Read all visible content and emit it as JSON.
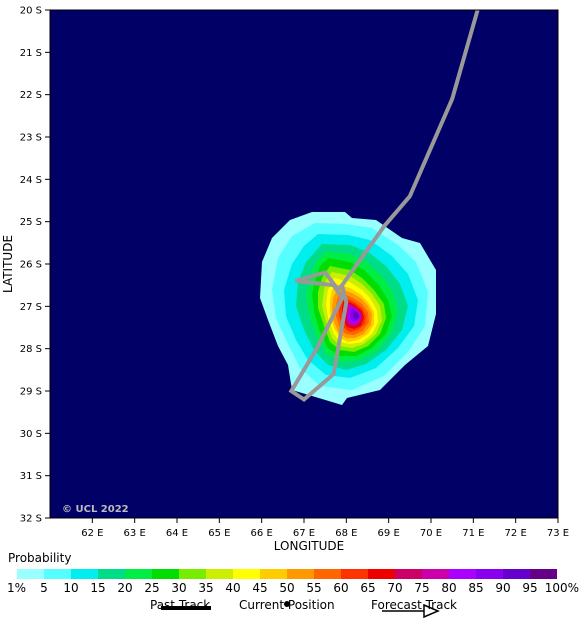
{
  "map": {
    "y_axis_title": "LATITUDE",
    "x_axis_title": "LONGITUDE",
    "lat_ticks": [
      "20 S",
      "21 S",
      "22 S",
      "23 S",
      "24 S",
      "25 S",
      "26 S",
      "27 S",
      "28 S",
      "29 S",
      "30 S",
      "31 S",
      "32 S"
    ],
    "lon_ticks": [
      "62 E",
      "63 E",
      "64 E",
      "65 E",
      "66 E",
      "67 E",
      "68 E",
      "69 E",
      "70 E",
      "71 E",
      "72 E",
      "73 E"
    ],
    "copyright": "© UCL 2022",
    "background_color": "#000066",
    "track_color": "#999999"
  },
  "chart_data": {
    "type": "heatmap",
    "title": "",
    "xlabel": "LONGITUDE",
    "ylabel": "LATITUDE",
    "xlim": [
      61,
      73
    ],
    "ylim": [
      -32,
      -20
    ],
    "probability_peak": {
      "lon": 68.3,
      "lat": -27.2
    },
    "probability_extent": {
      "lon": [
        66.0,
        70.2
      ],
      "lat": [
        -29.3,
        -24.7
      ]
    },
    "forecast_track": [
      {
        "lon": 71.1,
        "lat": -20.0
      },
      {
        "lon": 70.5,
        "lat": -22.1
      },
      {
        "lon": 69.5,
        "lat": -24.4
      },
      {
        "lon": 68.9,
        "lat": -25.1
      },
      {
        "lon": 67.9,
        "lat": -26.5
      },
      {
        "lon": 67.8,
        "lat": -26.6
      },
      {
        "lon": 67.5,
        "lat": -26.2
      },
      {
        "lon": 66.8,
        "lat": -26.4
      },
      {
        "lon": 67.7,
        "lat": -26.5
      },
      {
        "lon": 67.9,
        "lat": -26.8
      },
      {
        "lon": 67.3,
        "lat": -28.0
      },
      {
        "lon": 66.7,
        "lat": -29.0
      },
      {
        "lon": 67.0,
        "lat": -29.2
      },
      {
        "lon": 67.7,
        "lat": -28.6
      },
      {
        "lon": 68.0,
        "lat": -26.9
      },
      {
        "lon": 67.9,
        "lat": -26.5
      }
    ]
  },
  "legend": {
    "title": "Probability",
    "labels": [
      "1%",
      "5",
      "10",
      "15",
      "20",
      "25",
      "30",
      "35",
      "40",
      "45",
      "50",
      "55",
      "60",
      "65",
      "70",
      "75",
      "80",
      "85",
      "90",
      "95",
      "100%"
    ],
    "colors": [
      "#99ffff",
      "#55ffff",
      "#00eeee",
      "#00dd88",
      "#00ee44",
      "#00dd00",
      "#77ee00",
      "#ccee00",
      "#ffff00",
      "#ffcc00",
      "#ff9900",
      "#ff6600",
      "#ff3300",
      "#ee0000",
      "#cc0066",
      "#cc00aa",
      "#aa00ff",
      "#8800ee",
      "#6600cc",
      "#660088"
    ]
  },
  "key": {
    "past": "Past Track",
    "current": "Current Position",
    "forecast": "Forecast Track"
  }
}
